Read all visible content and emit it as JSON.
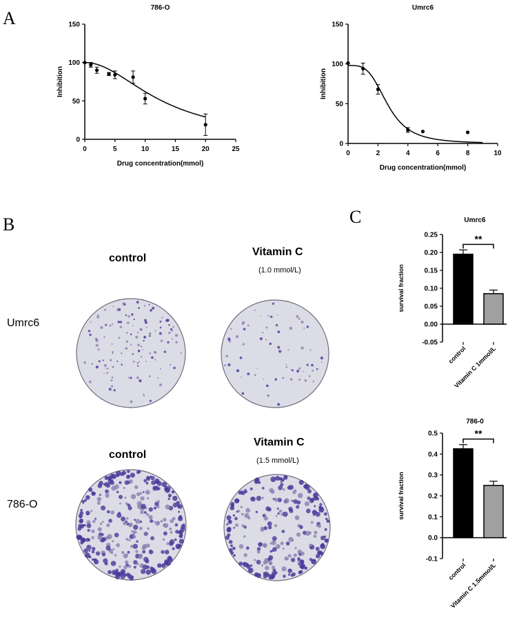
{
  "panels": {
    "a": "A",
    "b": "B",
    "c": "C"
  },
  "colony": {
    "row1_label": "Umrc6",
    "row2_label": "786-O",
    "control_label": "control",
    "vitc_label": "Vitamin C",
    "vitc_dose_row1": "(1.0 mmol/L)",
    "vitc_dose_row2": "(1.5 mmol/L)"
  },
  "colors": {
    "plate_fill": "#dcdce6",
    "colony_light": "#8a7fb0",
    "colony_dark": "#4a3a9a",
    "bar_control": "#000000",
    "bar_treated": "#a0a0a0"
  },
  "chart_data": [
    {
      "type": "scatter",
      "title": "786-O",
      "xlabel": "Drug concentration(mmol)",
      "ylabel": "Inhibition",
      "xlim": [
        0,
        25
      ],
      "ylim": [
        0,
        150
      ],
      "xticks": [
        "0",
        "5",
        "10",
        "15",
        "20",
        "25"
      ],
      "yticks": [
        "0",
        "50",
        "100",
        "150"
      ],
      "points": [
        {
          "x": 0,
          "y": 100,
          "err": 0
        },
        {
          "x": 1,
          "y": 97,
          "err": 3
        },
        {
          "x": 2,
          "y": 90,
          "err": 4
        },
        {
          "x": 4,
          "y": 85,
          "err": 2
        },
        {
          "x": 5,
          "y": 84,
          "err": 5
        },
        {
          "x": 8,
          "y": 81,
          "err": 8
        },
        {
          "x": 10,
          "y": 53,
          "err": 7
        },
        {
          "x": 20,
          "y": 19,
          "err": 14
        }
      ],
      "fit": {
        "top": 100,
        "bottom": 0,
        "ic50": 12.8,
        "hill": 2.0
      }
    },
    {
      "type": "scatter",
      "title": "Umrc6",
      "xlabel": "Drug concentration(mmol)",
      "ylabel": "Inhibition",
      "xlim": [
        0,
        10
      ],
      "ylim": [
        0,
        150
      ],
      "xticks": [
        "0",
        "2",
        "4",
        "6",
        "8",
        "10"
      ],
      "yticks": [
        "0",
        "50",
        "100",
        "150"
      ],
      "points": [
        {
          "x": 0,
          "y": 101,
          "err": 0
        },
        {
          "x": 1,
          "y": 94,
          "err": 7
        },
        {
          "x": 2,
          "y": 68,
          "err": 6
        },
        {
          "x": 4,
          "y": 17,
          "err": 3
        },
        {
          "x": 5,
          "y": 15,
          "err": 0
        },
        {
          "x": 8,
          "y": 14,
          "err": 0
        }
      ],
      "fit": {
        "top": 98,
        "bottom": 0,
        "ic50": 2.65,
        "hill": 3.6
      }
    },
    {
      "type": "bar",
      "title": "Umrc6",
      "ylabel": "survival fraction",
      "categories": [
        "control",
        "Vitamin C 1mmol/L"
      ],
      "values": [
        0.195,
        0.085
      ],
      "errors": [
        0.012,
        0.01
      ],
      "ylim": [
        -0.05,
        0.25
      ],
      "yticks": [
        "-0.05",
        "0.00",
        "0.05",
        "0.10",
        "0.15",
        "0.20",
        "0.25"
      ],
      "significance": "**"
    },
    {
      "type": "bar",
      "title": "786-0",
      "ylabel": "survival fraction",
      "categories": [
        "control",
        "Vitamin C 1.5mmol/L"
      ],
      "values": [
        0.425,
        0.25
      ],
      "errors": [
        0.02,
        0.02
      ],
      "ylim": [
        -0.1,
        0.5
      ],
      "yticks": [
        "-0.1",
        "0.0",
        "0.1",
        "0.2",
        "0.3",
        "0.4",
        "0.5"
      ],
      "significance": "**"
    }
  ]
}
